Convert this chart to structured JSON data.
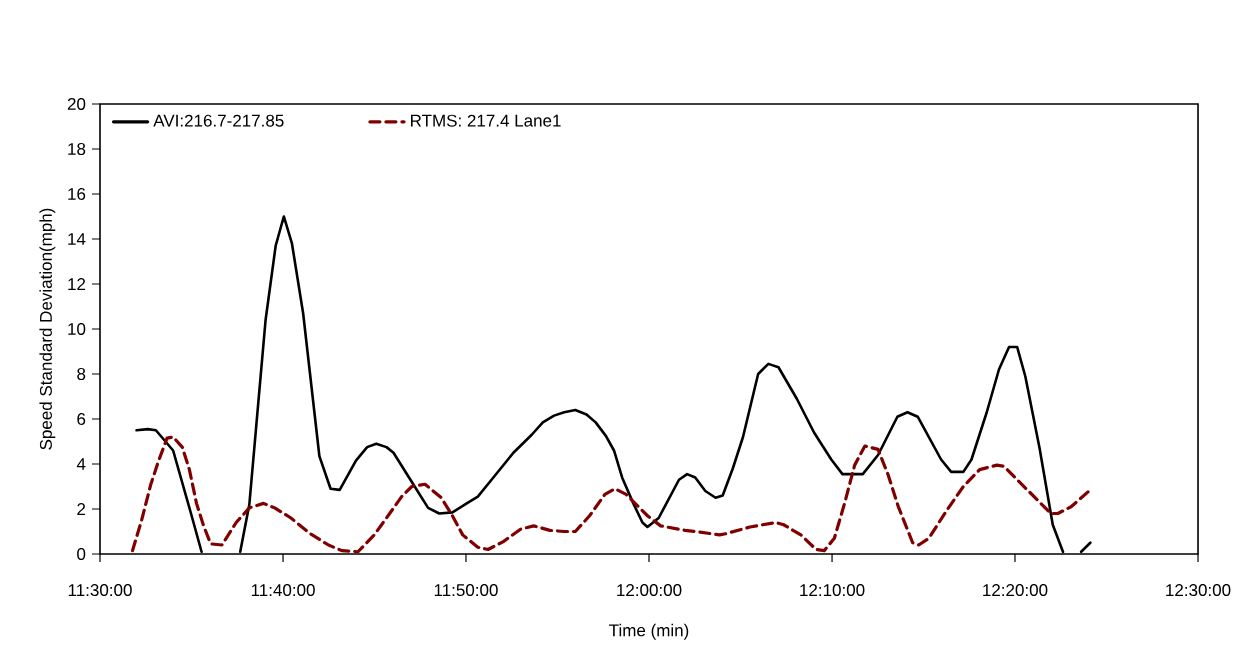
{
  "chart_data": {
    "type": "line",
    "xlabel": "Time (min)",
    "ylabel": "Speed Standard Deviation(mph)",
    "legend": "top left",
    "marker": "none",
    "grid": false,
    "xlim": [
      11.5,
      12.5
    ],
    "xticks": [
      {
        "value": 11.5,
        "label": "11:30:00"
      },
      {
        "value": 11.6667,
        "label": "11:40:00"
      },
      {
        "value": 11.8333,
        "label": "11:50:00"
      },
      {
        "value": 12.0,
        "label": "12:00:00"
      },
      {
        "value": 12.1667,
        "label": "12:10:00"
      },
      {
        "value": 12.3333,
        "label": "12:20:00"
      },
      {
        "value": 12.5,
        "label": "12:30:00"
      }
    ],
    "ylim": [
      0,
      20
    ],
    "yticks": [
      0,
      2,
      4,
      6,
      8,
      10,
      12,
      14,
      16,
      18,
      20
    ],
    "series": [
      {
        "name": "AVI:216.7-217.85",
        "color": "#000000",
        "line_style": "solid",
        "x": [
          11.5333,
          11.5435,
          11.5509,
          11.5666,
          11.5823,
          11.5925,
          11.61,
          11.6277,
          11.636,
          11.6508,
          11.66,
          11.6674,
          11.6748,
          11.685,
          11.6998,
          11.71,
          11.7183,
          11.7331,
          11.7433,
          11.7516,
          11.7609,
          11.7673,
          11.784,
          11.7988,
          11.809,
          11.821,
          11.834,
          11.8441,
          11.8599,
          11.8765,
          11.8932,
          11.9033,
          11.9135,
          11.9228,
          11.9329,
          11.9431,
          11.9514,
          11.9607,
          11.9681,
          11.9755,
          11.9857,
          11.994,
          11.9986,
          12.0088,
          12.0273,
          12.0347,
          12.0421,
          12.0513,
          12.0606,
          12.0671,
          12.0763,
          12.0856,
          12.0994,
          12.1087,
          12.1179,
          12.1346,
          12.1503,
          12.166,
          12.1762,
          12.1947,
          12.2086,
          12.2262,
          12.2354,
          12.2447,
          12.266,
          12.2752,
          12.2863,
          12.2937,
          12.3076,
          12.3187,
          12.3279,
          12.3353,
          12.3427,
          12.3557,
          12.3677,
          12.377,
          12.385,
          12.3936,
          12.4019
        ],
        "values": [
          5.5,
          5.55,
          5.5,
          4.6,
          1.9,
          0.1,
          null,
          0.1,
          2.2,
          10.4,
          13.7,
          15.0,
          13.8,
          10.7,
          4.35,
          2.9,
          2.85,
          4.15,
          4.75,
          4.9,
          4.75,
          4.5,
          3.2,
          2.05,
          1.8,
          1.85,
          2.25,
          2.55,
          3.5,
          4.5,
          5.3,
          5.85,
          6.15,
          6.3,
          6.4,
          6.2,
          5.85,
          5.25,
          4.6,
          3.4,
          2.25,
          1.4,
          1.2,
          1.6,
          3.3,
          3.55,
          3.4,
          2.8,
          2.5,
          2.6,
          3.8,
          5.2,
          8.0,
          8.45,
          8.3,
          6.9,
          5.4,
          4.2,
          3.55,
          3.55,
          4.4,
          6.1,
          6.3,
          6.1,
          4.2,
          3.65,
          3.65,
          4.2,
          6.3,
          8.2,
          9.2,
          9.2,
          7.9,
          4.7,
          1.3,
          0.1,
          null,
          0.1,
          0.5
        ]
      },
      {
        "name": "RTMS: 217.4 Lane1",
        "color": "#800000",
        "line_style": "dashed",
        "x": [
          11.5296,
          11.5379,
          11.5463,
          11.5527,
          11.5611,
          11.5666,
          11.5749,
          11.5814,
          11.5879,
          11.5944,
          11.6008,
          11.611,
          11.624,
          11.636,
          11.6489,
          11.6591,
          11.6739,
          11.6915,
          11.7081,
          11.7202,
          11.735,
          11.7498,
          11.7609,
          11.7747,
          11.784,
          11.796,
          11.8108,
          11.821,
          11.8303,
          11.8441,
          11.8534,
          11.8673,
          11.883,
          11.895,
          11.9098,
          11.9228,
          11.9329,
          11.9459,
          11.9598,
          11.969,
          11.9792,
          11.9894,
          11.9986,
          12.0106,
          12.0328,
          12.0421,
          12.0643,
          12.0698,
          12.092,
          12.1152,
          12.1226,
          12.1383,
          12.1522,
          12.1596,
          12.1688,
          12.1781,
          12.1873,
          12.1966,
          12.2086,
          12.2179,
          12.2271,
          12.2401,
          12.2456,
          12.2549,
          12.2706,
          12.2863,
          12.3011,
          12.3168,
          12.3233,
          12.3353,
          12.3538,
          12.3659,
          12.3723,
          12.3844,
          12.4019
        ],
        "values": [
          0.15,
          1.5,
          3.1,
          4.05,
          5.15,
          5.2,
          4.75,
          3.75,
          2.25,
          1.25,
          0.45,
          0.4,
          1.4,
          2.05,
          2.25,
          2.05,
          1.6,
          0.9,
          0.4,
          0.15,
          0.1,
          0.85,
          1.6,
          2.55,
          3.0,
          3.1,
          2.5,
          1.7,
          0.85,
          0.3,
          0.2,
          0.55,
          1.1,
          1.25,
          1.05,
          1.0,
          1.0,
          1.7,
          2.65,
          2.9,
          2.65,
          2.15,
          1.7,
          1.25,
          1.05,
          1.0,
          0.85,
          0.9,
          1.2,
          1.4,
          1.3,
          0.85,
          0.2,
          0.15,
          0.7,
          2.25,
          3.95,
          4.8,
          4.65,
          3.5,
          2.1,
          0.5,
          0.4,
          0.7,
          1.9,
          3.0,
          3.75,
          3.95,
          3.9,
          3.3,
          2.4,
          1.8,
          1.8,
          2.1,
          2.85
        ]
      }
    ]
  }
}
